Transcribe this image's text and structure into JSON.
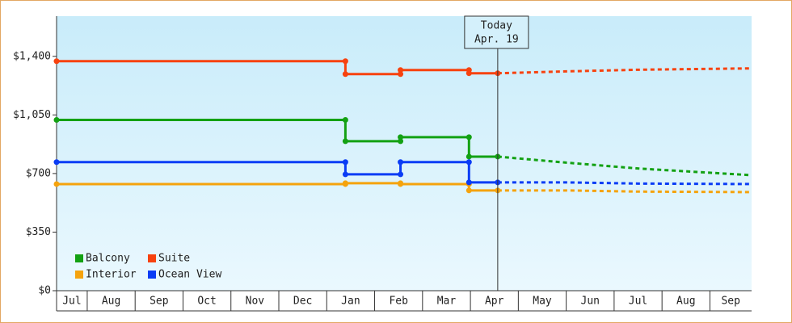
{
  "chart_data": {
    "type": "step-line",
    "xlim": [
      0.36,
      14.87
    ],
    "xticks": [
      {
        "value": 0.5,
        "label": "Jul"
      },
      {
        "value": 1.5,
        "label": "Aug"
      },
      {
        "value": 2.5,
        "label": "Sep"
      },
      {
        "value": 3.5,
        "label": "Oct"
      },
      {
        "value": 4.5,
        "label": "Nov"
      },
      {
        "value": 5.5,
        "label": "Dec"
      },
      {
        "value": 6.5,
        "label": "Jan"
      },
      {
        "value": 7.5,
        "label": "Feb"
      },
      {
        "value": 8.5,
        "label": "Mar"
      },
      {
        "value": 9.5,
        "label": "Apr"
      },
      {
        "value": 10.5,
        "label": "May"
      },
      {
        "value": 11.5,
        "label": "Jun"
      },
      {
        "value": 12.5,
        "label": "Jul"
      },
      {
        "value": 13.5,
        "label": "Aug"
      },
      {
        "value": 14.5,
        "label": "Sep"
      }
    ],
    "ylim": [
      0,
      1640
    ],
    "yticks": [
      {
        "value": 0,
        "label": "$0"
      },
      {
        "value": 350,
        "label": "$350"
      },
      {
        "value": 700,
        "label": "$700"
      },
      {
        "value": 1050,
        "label": "$1,050"
      },
      {
        "value": 1400,
        "label": "$1,400"
      }
    ],
    "today": {
      "x": 9.57,
      "label": "Today",
      "date": "Apr. 19"
    },
    "legend": "bottom-left",
    "series": [
      {
        "name": "Balcony",
        "color": "#13a113",
        "x": [
          0.36,
          6.39,
          6.39,
          7.54,
          7.54,
          8.97,
          8.97,
          9.57
        ],
        "values": [
          1020,
          1020,
          893,
          893,
          917,
          917,
          801,
          801
        ],
        "forecast_x": [
          9.57,
          11,
          12.5,
          14.87
        ],
        "forecast_values": [
          801,
          765,
          730,
          690
        ]
      },
      {
        "name": "Suite",
        "color": "#f7420f",
        "x": [
          0.36,
          6.39,
          6.39,
          7.54,
          7.54,
          8.97,
          8.97,
          9.57
        ],
        "values": [
          1371,
          1371,
          1294,
          1294,
          1318,
          1318,
          1299,
          1299
        ],
        "forecast_x": [
          9.57,
          11,
          12.5,
          14.87
        ],
        "forecast_values": [
          1299,
          1310,
          1320,
          1328
        ]
      },
      {
        "name": "Interior",
        "color": "#f5a30d",
        "x": [
          0.36,
          6.39,
          6.39,
          7.54,
          7.54,
          8.97,
          8.97,
          9.57
        ],
        "values": [
          637,
          637,
          642,
          642,
          637,
          637,
          599,
          599
        ],
        "forecast_x": [
          9.57,
          11,
          12.5,
          14.87
        ],
        "forecast_values": [
          599,
          599,
          592,
          589
        ]
      },
      {
        "name": "Ocean View",
        "color": "#0a3cf5",
        "x": [
          0.36,
          6.39,
          6.39,
          7.54,
          7.54,
          8.97,
          8.97,
          9.57
        ],
        "values": [
          768,
          768,
          695,
          695,
          768,
          768,
          647,
          647
        ],
        "forecast_x": [
          9.57,
          11,
          12.5,
          14.87
        ],
        "forecast_values": [
          647,
          647,
          640,
          637
        ]
      }
    ]
  }
}
